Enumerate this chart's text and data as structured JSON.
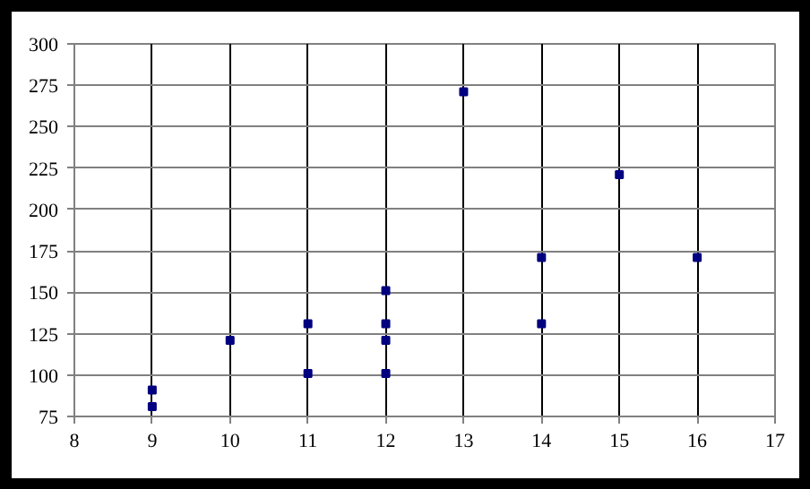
{
  "chart_data": {
    "type": "scatter",
    "x": [
      9,
      9,
      10,
      11,
      11,
      12,
      12,
      12,
      12,
      13,
      14,
      14,
      15,
      16
    ],
    "values": [
      81,
      91,
      121,
      101,
      131,
      101,
      121,
      131,
      151,
      271,
      131,
      171,
      221,
      171
    ],
    "color": "#000080",
    "marker": "square",
    "xlim": [
      8,
      17
    ],
    "xticks": [
      8,
      9,
      10,
      11,
      12,
      13,
      14,
      15,
      16,
      17
    ],
    "ylim": [
      75,
      300
    ],
    "yticks": [
      75,
      100,
      125,
      150,
      175,
      200,
      225,
      250,
      275,
      300
    ],
    "grid": true
  }
}
